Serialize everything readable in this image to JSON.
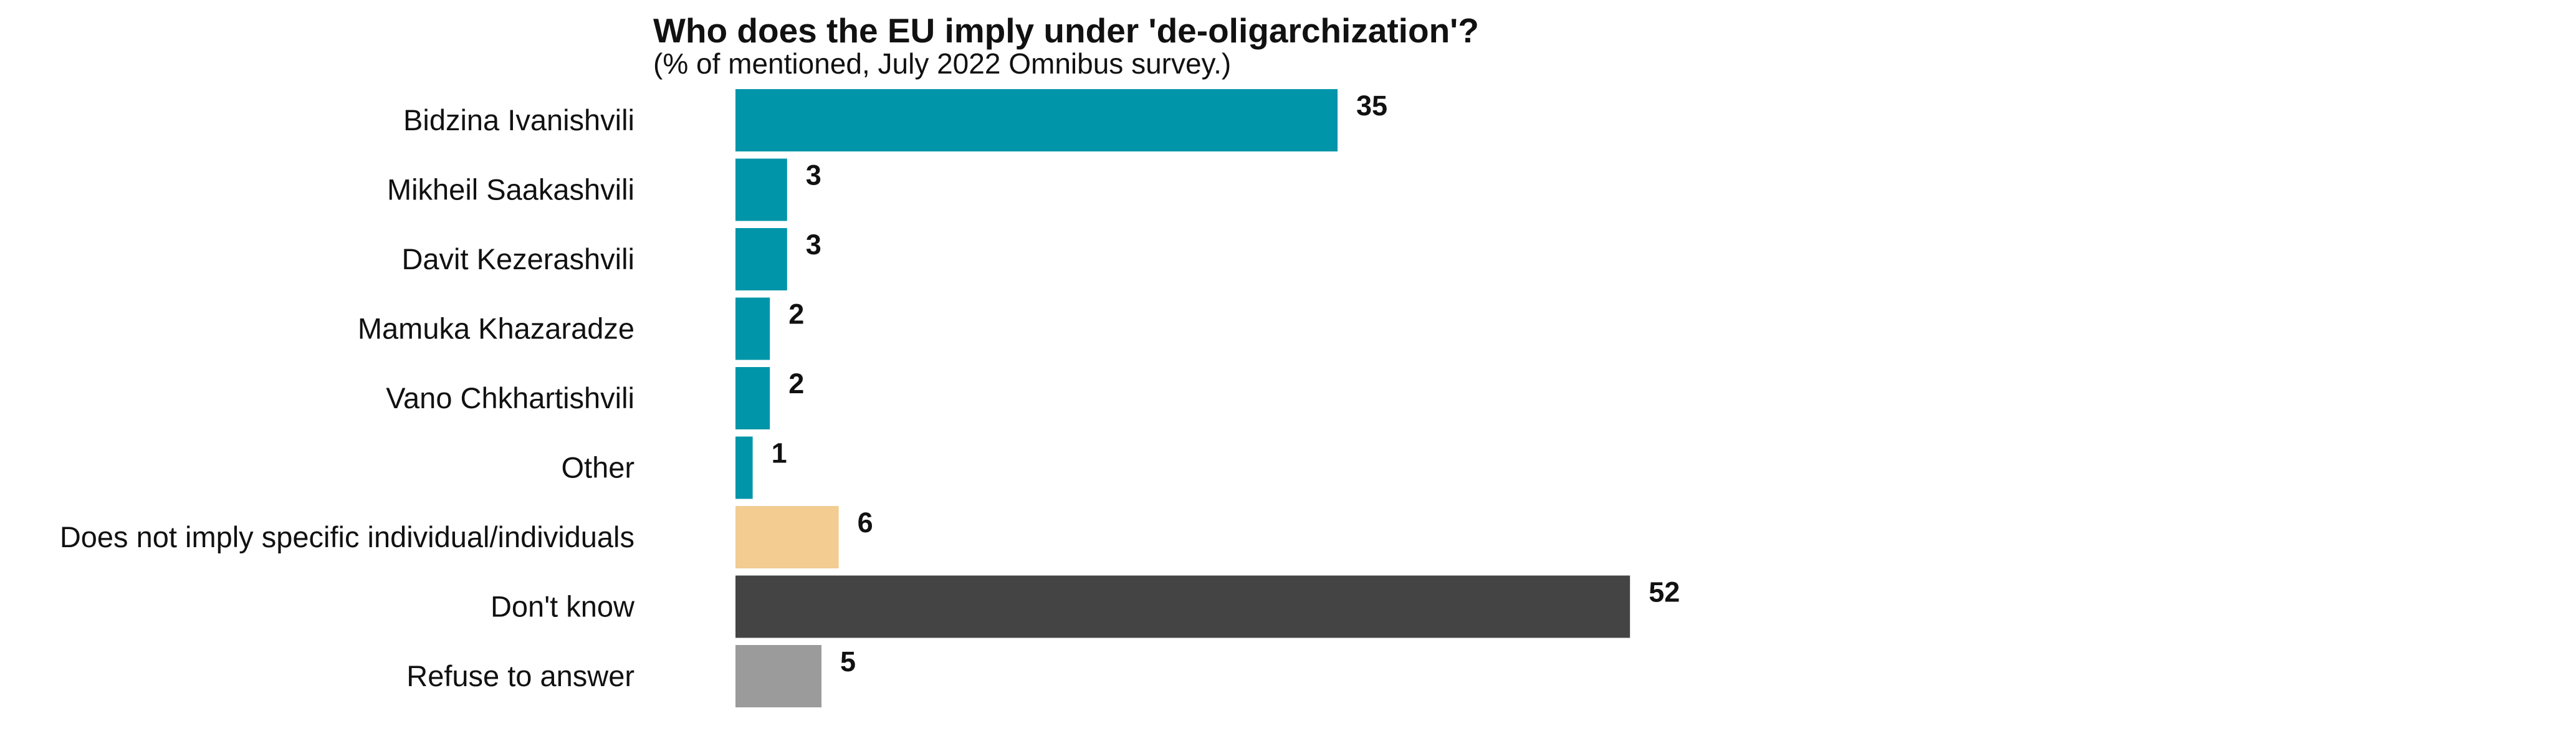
{
  "chart_data": {
    "type": "bar",
    "orientation": "horizontal",
    "title": "Who does the EU imply under 'de-oligarchization'?",
    "subtitle": "(% of mentioned, July 2022 Omnibus survey.)",
    "categories": [
      "Bidzina Ivanishvili",
      "Mikheil Saakashvili",
      "Davit Kezerashvili",
      "Mamuka Khazaradze",
      "Vano Chkhartishvili",
      "Other",
      "Does not imply specific individual/individuals",
      "Don't know",
      "Refuse to answer"
    ],
    "values": [
      35,
      3,
      3,
      2,
      2,
      1,
      6,
      52,
      5
    ],
    "value_labels": [
      "35",
      "3",
      "3",
      "2",
      "2",
      "1",
      "6",
      "52",
      "5"
    ],
    "colors": [
      "#0095a8",
      "#0095a8",
      "#0095a8",
      "#0095a8",
      "#0095a8",
      "#0095a8",
      "#f2cc90",
      "#444444",
      "#9b9b9b"
    ],
    "xlim": [
      0,
      52
    ],
    "grid": false,
    "legend": "none"
  }
}
